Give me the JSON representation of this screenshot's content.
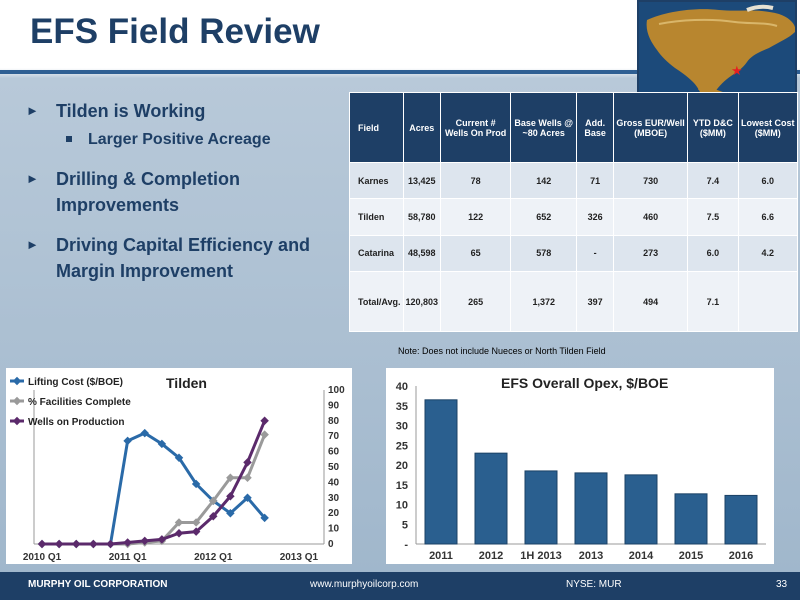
{
  "title": "EFS Field Review",
  "bullets": [
    {
      "text": "Tilden is Working",
      "sub": [
        "Larger Positive Acreage"
      ]
    },
    {
      "text": "Drilling & Completion Improvements",
      "sub": []
    },
    {
      "text": "Driving Capital Efficiency and Margin Improvement",
      "sub": []
    }
  ],
  "table": {
    "headers": [
      "Field",
      "Acres",
      "Current # Wells On Prod",
      "Base Wells @ ~80 Acres",
      "Add. Base",
      "Gross EUR/Well (MBOE)",
      "YTD D&C ($MM)",
      "Lowest Cost ($MM)"
    ],
    "rows": [
      [
        "Karnes",
        "13,425",
        "78",
        "142",
        "71",
        "730",
        "7.4",
        "6.0"
      ],
      [
        "Tilden",
        "58,780",
        "122",
        "652",
        "326",
        "460",
        "7.5",
        "6.6"
      ],
      [
        "Catarina",
        "48,598",
        "65",
        "578",
        "-",
        "273",
        "6.0",
        "4.2"
      ],
      [
        "Total/Avg.",
        "120,803",
        "265",
        "1,372",
        "397",
        "494",
        "7.1",
        ""
      ]
    ]
  },
  "note": "Note: Does not include Nueces or North Tilden Field",
  "footer": {
    "company": "MURPHY OIL CORPORATION",
    "url": "www.murphyoilcorp.com",
    "ticker": "NYSE: MUR",
    "page": "33"
  },
  "chart_data": [
    {
      "type": "line",
      "title": "Tilden",
      "x": [
        "2010 Q1",
        "",
        "",
        "",
        "",
        "2011 Q1",
        "",
        "",
        "",
        "",
        "2012 Q1",
        "",
        "",
        "",
        "",
        "2013 Q1",
        ""
      ],
      "xtick_labels": [
        "2010 Q1",
        "2011 Q1",
        "2012 Q1",
        "2013 Q1"
      ],
      "ylim": [
        0,
        100
      ],
      "yticks": [
        0,
        10,
        20,
        30,
        40,
        50,
        60,
        70,
        80,
        90,
        100
      ],
      "legend_position": "top-left",
      "series": [
        {
          "name": "Lifting Cost ($/BOE)",
          "color": "#2a6aa8",
          "values": [
            0,
            0,
            0,
            0,
            0,
            67,
            72,
            65,
            56,
            39,
            28,
            20,
            30,
            17,
            null,
            null,
            null
          ]
        },
        {
          "name": "% Facilities Complete",
          "color": "#9a9a9a",
          "values": [
            0,
            0,
            0,
            0,
            0,
            0,
            1,
            2,
            14,
            14,
            28,
            43,
            43,
            71,
            null,
            null,
            null
          ]
        },
        {
          "name": "Wells on Production",
          "color": "#5b2a6b",
          "values": [
            0,
            0,
            0,
            0,
            0,
            1,
            2,
            3,
            7,
            8,
            18,
            31,
            53,
            80,
            null,
            null,
            null
          ]
        }
      ]
    },
    {
      "type": "bar",
      "title": "EFS Overall Opex, $/BOE",
      "categories": [
        "2011",
        "2012",
        "1H 2013",
        "2013",
        "2014",
        "2015",
        "2016"
      ],
      "values": [
        36.5,
        23,
        18.5,
        18,
        17.5,
        12.7,
        12.3
      ],
      "ylim": [
        0,
        40
      ],
      "yticks": [
        "-",
        "5",
        "10",
        "15",
        "20",
        "25",
        "30",
        "35",
        "40"
      ],
      "color": "#2a5f8f"
    }
  ]
}
